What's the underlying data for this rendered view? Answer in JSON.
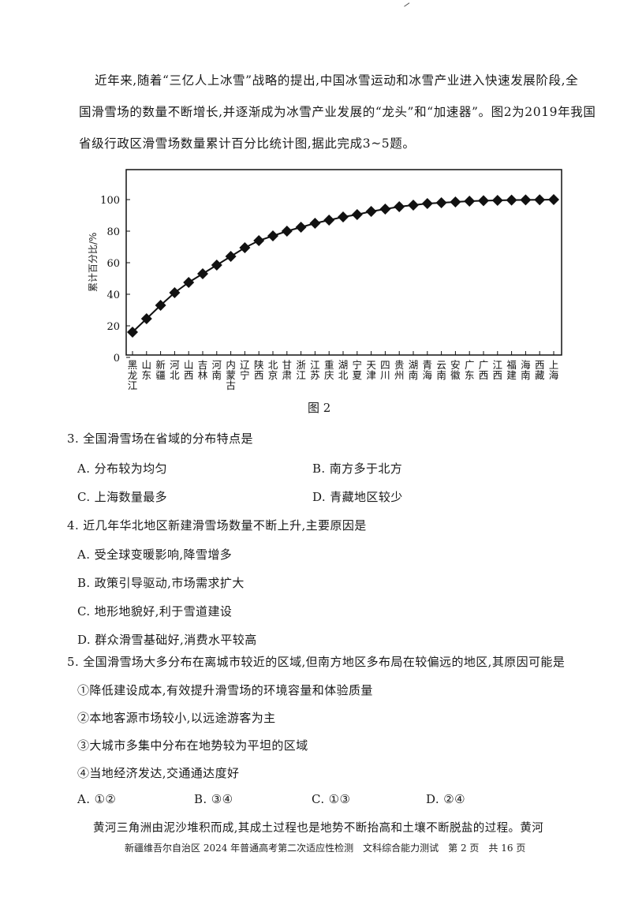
{
  "intro": {
    "lines": [
      "近年来,随着“三亿人上冰雪”战略的提出,中国冰雪运动和冰雪产业进入快速发展阶段,全",
      "国滑雪场的数量不断增长,并逐渐成为冰雪产业发展的“龙头”和“加速器”。图2为2019年我国",
      "省级行政区滑雪场数量累计百分比统计图,据此完成3~5题。"
    ]
  },
  "figure_caption": "图 2",
  "chart_data": {
    "type": "line",
    "title": "",
    "xlabel": "",
    "ylabel": "累计百分比/%",
    "ylim": [
      0,
      110
    ],
    "yticks": [
      0,
      20,
      40,
      60,
      80,
      100
    ],
    "grid": false,
    "marker": "diamond",
    "categories": [
      "黑龙江",
      "山东",
      "新疆",
      "河北",
      "山西",
      "吉林",
      "河南",
      "内蒙古",
      "辽宁",
      "陕西",
      "北京",
      "甘肃",
      "浙江",
      "江苏",
      "重庆",
      "湖北",
      "宁夏",
      "天津",
      "四川",
      "贵州",
      "湖南",
      "青海",
      "云南",
      "安徽",
      "广东",
      "广西",
      "江西",
      "福建",
      "海南",
      "西藏",
      "上海"
    ],
    "values": [
      16,
      24.5,
      33,
      41,
      47.5,
      53,
      58.5,
      64,
      69.5,
      74,
      77,
      80,
      82.5,
      85,
      87,
      89,
      90.5,
      92.5,
      94,
      95.5,
      96.5,
      97.5,
      98,
      98.5,
      99,
      99.3,
      99.5,
      99.7,
      99.8,
      99.9,
      100
    ]
  },
  "questions": [
    {
      "number": "3.",
      "stem": "3. 全国滑雪场在省域的分布特点是",
      "options": [
        {
          "label": "A. 分布较为均匀"
        },
        {
          "label": "B. 南方多于北方"
        },
        {
          "label": "C. 上海数量最多"
        },
        {
          "label": "D. 青藏地区较少"
        }
      ]
    },
    {
      "number": "4.",
      "stem": "4. 近几年华北地区新建滑雪场数量不断上升,主要原因是",
      "options": [
        {
          "label": "A. 受全球变暖影响,降雪增多"
        },
        {
          "label": "B. 政策引导驱动,市场需求扩大"
        },
        {
          "label": "C. 地形地貌好,利于雪道建设"
        },
        {
          "label": "D. 群众滑雪基础好,消费水平较高"
        }
      ]
    },
    {
      "number": "5.",
      "stem": "5. 全国滑雪场大多分布在离城市较近的区域,但南方地区多布局在较偏远的地区,其原因可能是",
      "statements": [
        "①降低建设成本,有效提升滑雪场的环境容量和体验质量",
        "②本地客源市场较小,以远途游客为主",
        "③大城市多集中分布在地势较为平坦的区域",
        "④当地经济发达,交通通达度好"
      ],
      "options": [
        {
          "label": "A. ①②"
        },
        {
          "label": "B. ③④"
        },
        {
          "label": "C. ①③"
        },
        {
          "label": "D. ②④"
        }
      ]
    }
  ],
  "next_passage": "黄河三角洲由泥沙堆积而成,其成土过程也是地势不断抬高和土壤不断脱盐的过程。黄河",
  "footer": "新疆维吾尔自治区 2024 年普通高考第二次适应性检测　文科综合能力测试　第 2 页　共 16 页"
}
